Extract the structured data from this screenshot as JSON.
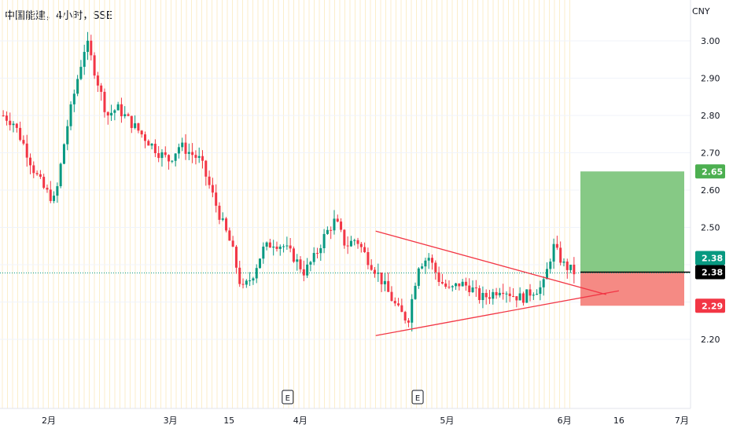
{
  "header": {
    "title": "中国能建，4小时，SSE",
    "currency": "CNY"
  },
  "colors": {
    "up": "#089981",
    "down": "#f23645",
    "grid": "#fbeecb",
    "target_zone": "#86c985",
    "stop_zone": "#f58a84",
    "target_badge": "#4caf50",
    "stop_badge": "#f23645",
    "price_badge": "#089981",
    "entry_badge": "#000000",
    "trendline": "#f23645"
  },
  "chart_data": {
    "type": "candlestick",
    "title": "中国能建，4小时，SSE",
    "currency": "CNY",
    "ylim": [
      2.15,
      3.05
    ],
    "y_ticks": [
      3.0,
      2.9,
      2.8,
      2.7,
      2.6,
      2.5,
      2.4,
      2.3,
      2.2
    ],
    "x_ticks": [
      {
        "label": "2月",
        "date": "2024-02-01"
      },
      {
        "label": "3月",
        "date": "2024-03-01"
      },
      {
        "label": "15",
        "date": "2024-03-15"
      },
      {
        "label": "4月",
        "date": "2024-04-01"
      },
      {
        "label": "5月",
        "date": "2024-05-06"
      },
      {
        "label": "6月",
        "date": "2024-06-03"
      },
      {
        "label": "16",
        "date": "2024-06-16"
      },
      {
        "label": "7月",
        "date": "2024-07-01"
      }
    ],
    "events": [
      {
        "label": "E",
        "date": "2024-03-29"
      },
      {
        "label": "E",
        "date": "2024-04-29"
      }
    ],
    "current_price": "2.38",
    "position": {
      "entry": "2.38",
      "target": "2.65",
      "stop": "2.29"
    },
    "trendlines": [
      {
        "from": {
          "date": "2024-04-19",
          "price": 2.49
        },
        "to": {
          "date": "2024-06-13",
          "price": 2.32
        }
      },
      {
        "from": {
          "date": "2024-04-19",
          "price": 2.21
        },
        "to": {
          "date": "2024-06-16",
          "price": 2.33
        }
      }
    ],
    "price_path": [
      2.8,
      2.78,
      2.72,
      2.65,
      2.6,
      2.57,
      2.75,
      2.88,
      3.0,
      2.9,
      2.8,
      2.82,
      2.79,
      2.76,
      2.73,
      2.7,
      2.68,
      2.72,
      2.7,
      2.68,
      2.6,
      2.52,
      2.45,
      2.33,
      2.37,
      2.44,
      2.46,
      2.45,
      2.42,
      2.38,
      2.42,
      2.48,
      2.52,
      2.45,
      2.47,
      2.42,
      2.38,
      2.33,
      2.28,
      2.25,
      2.4,
      2.42,
      2.36,
      2.33,
      2.35,
      2.34,
      2.31,
      2.32,
      2.34,
      2.32,
      2.31,
      2.33,
      2.34,
      2.45,
      2.4,
      2.38
    ]
  }
}
